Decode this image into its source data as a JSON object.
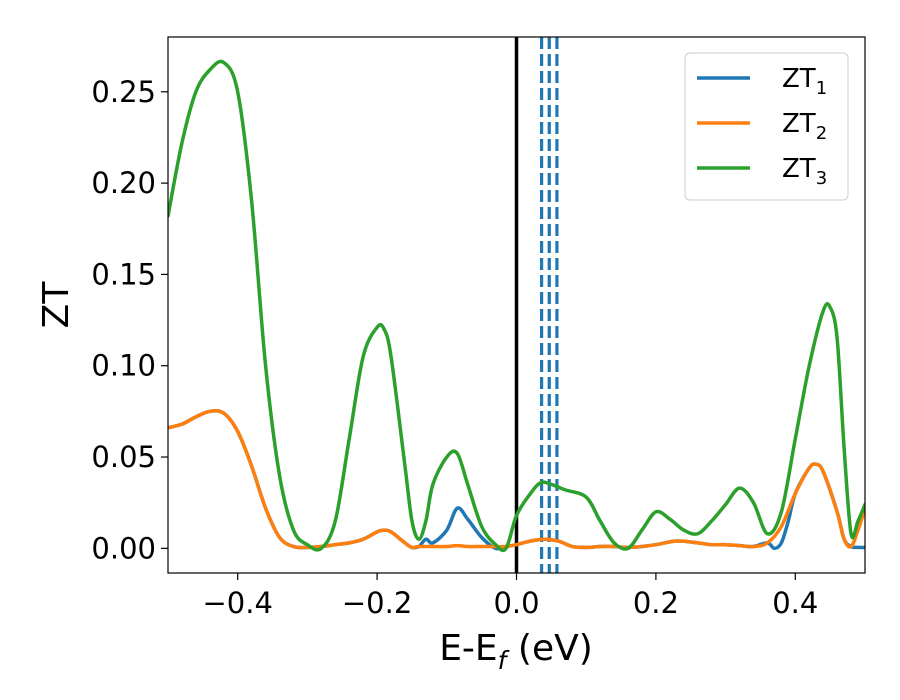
{
  "chart_data": {
    "type": "line",
    "title": "",
    "xlabel": {
      "main": "E-E",
      "sub": "f",
      "suffix": " (eV)"
    },
    "ylabel": "ZT",
    "xlim": [
      -0.5,
      0.5
    ],
    "ylim": [
      -0.0135,
      0.28
    ],
    "xticks": [
      -0.4,
      -0.2,
      0.0,
      0.2,
      0.4
    ],
    "xtick_labels": [
      "−0.4",
      "−0.2",
      "0.0",
      "0.2",
      "0.4"
    ],
    "yticks": [
      0.0,
      0.05,
      0.1,
      0.15,
      0.2,
      0.25
    ],
    "ytick_labels": [
      "0.00",
      "0.05",
      "0.10",
      "0.15",
      "0.20",
      "0.25"
    ],
    "grid": false,
    "legend_position": "top-right",
    "vertical_lines": [
      {
        "x": 0.0,
        "color": "#000000",
        "style": "solid"
      },
      {
        "x": 0.036,
        "color": "#1f77b4",
        "style": "dashed"
      },
      {
        "x": 0.047,
        "color": "#1f77b4",
        "style": "dashed"
      },
      {
        "x": 0.058,
        "color": "#1f77b4",
        "style": "dashed"
      }
    ],
    "series": [
      {
        "name": {
          "main": "ZT",
          "sub": "1"
        },
        "color": "#1f77b4",
        "x": [
          -0.5,
          -0.48,
          -0.46,
          -0.44,
          -0.42,
          -0.4,
          -0.38,
          -0.36,
          -0.34,
          -0.32,
          -0.3,
          -0.28,
          -0.26,
          -0.24,
          -0.22,
          -0.2,
          -0.19,
          -0.18,
          -0.16,
          -0.15,
          -0.14,
          -0.13,
          -0.12,
          -0.1,
          -0.085,
          -0.07,
          -0.05,
          -0.03,
          -0.015,
          0.0,
          0.02,
          0.04,
          0.06,
          0.08,
          0.1,
          0.12,
          0.14,
          0.16,
          0.18,
          0.2,
          0.23,
          0.26,
          0.28,
          0.3,
          0.32,
          0.34,
          0.36,
          0.37,
          0.38,
          0.39,
          0.4,
          0.42,
          0.43,
          0.44,
          0.46,
          0.47,
          0.48,
          0.49,
          0.5
        ],
        "y": [
          0.066,
          0.068,
          0.072,
          0.075,
          0.074,
          0.064,
          0.045,
          0.022,
          0.006,
          0.001,
          0.0005,
          0.001,
          0.002,
          0.003,
          0.005,
          0.009,
          0.01,
          0.009,
          0.003,
          0.0005,
          0.001,
          0.005,
          0.003,
          0.01,
          0.022,
          0.016,
          0.006,
          0.0,
          0.001,
          0.002,
          0.004,
          0.005,
          0.004,
          0.001,
          0.0005,
          0.001,
          0.001,
          0.0005,
          0.001,
          0.002,
          0.004,
          0.003,
          0.002,
          0.002,
          0.0015,
          0.001,
          0.003,
          0.0,
          0.003,
          0.015,
          0.03,
          0.044,
          0.046,
          0.042,
          0.02,
          0.005,
          0.001,
          0.0005,
          0.0005
        ]
      },
      {
        "name": {
          "main": "ZT",
          "sub": "2"
        },
        "color": "#ff7f0e",
        "x": [
          -0.5,
          -0.48,
          -0.46,
          -0.44,
          -0.42,
          -0.4,
          -0.38,
          -0.36,
          -0.34,
          -0.32,
          -0.3,
          -0.28,
          -0.26,
          -0.24,
          -0.22,
          -0.2,
          -0.19,
          -0.18,
          -0.16,
          -0.15,
          -0.14,
          -0.12,
          -0.1,
          -0.085,
          -0.07,
          -0.05,
          -0.03,
          -0.015,
          0.0,
          0.02,
          0.04,
          0.06,
          0.08,
          0.1,
          0.12,
          0.14,
          0.16,
          0.18,
          0.2,
          0.23,
          0.26,
          0.28,
          0.3,
          0.32,
          0.34,
          0.36,
          0.38,
          0.4,
          0.42,
          0.43,
          0.44,
          0.46,
          0.47,
          0.48,
          0.49,
          0.5
        ],
        "y": [
          0.066,
          0.068,
          0.072,
          0.075,
          0.074,
          0.064,
          0.045,
          0.022,
          0.006,
          0.001,
          0.0005,
          0.001,
          0.002,
          0.003,
          0.005,
          0.009,
          0.01,
          0.009,
          0.003,
          0.0005,
          0.001,
          0.001,
          0.001,
          0.0015,
          0.001,
          0.001,
          0.001,
          0.001,
          0.002,
          0.004,
          0.005,
          0.004,
          0.001,
          0.0005,
          0.001,
          0.001,
          0.0005,
          0.001,
          0.002,
          0.004,
          0.003,
          0.002,
          0.002,
          0.0015,
          0.001,
          0.003,
          0.012,
          0.03,
          0.044,
          0.046,
          0.042,
          0.02,
          0.005,
          0.001,
          0.01,
          0.022
        ]
      },
      {
        "name": {
          "main": "ZT",
          "sub": "3"
        },
        "color": "#2ca02c",
        "x": [
          -0.5,
          -0.48,
          -0.46,
          -0.44,
          -0.42,
          -0.4,
          -0.38,
          -0.36,
          -0.34,
          -0.32,
          -0.3,
          -0.28,
          -0.26,
          -0.24,
          -0.22,
          -0.2,
          -0.19,
          -0.18,
          -0.16,
          -0.15,
          -0.14,
          -0.13,
          -0.12,
          -0.1,
          -0.085,
          -0.07,
          -0.05,
          -0.03,
          -0.015,
          0.0,
          0.02,
          0.035,
          0.05,
          0.07,
          0.1,
          0.12,
          0.14,
          0.16,
          0.18,
          0.2,
          0.22,
          0.24,
          0.26,
          0.28,
          0.3,
          0.32,
          0.34,
          0.36,
          0.38,
          0.4,
          0.42,
          0.44,
          0.45,
          0.46,
          0.47,
          0.48,
          0.49,
          0.5
        ],
        "y": [
          0.182,
          0.222,
          0.25,
          0.262,
          0.266,
          0.25,
          0.19,
          0.1,
          0.04,
          0.01,
          0.002,
          0.0,
          0.015,
          0.06,
          0.105,
          0.121,
          0.12,
          0.105,
          0.045,
          0.015,
          0.005,
          0.015,
          0.035,
          0.05,
          0.052,
          0.035,
          0.012,
          0.002,
          0.0,
          0.018,
          0.03,
          0.036,
          0.035,
          0.032,
          0.028,
          0.015,
          0.003,
          0.0,
          0.01,
          0.02,
          0.016,
          0.01,
          0.008,
          0.015,
          0.024,
          0.033,
          0.025,
          0.008,
          0.02,
          0.06,
          0.1,
          0.13,
          0.132,
          0.115,
          0.055,
          0.008,
          0.015,
          0.024
        ]
      }
    ]
  }
}
